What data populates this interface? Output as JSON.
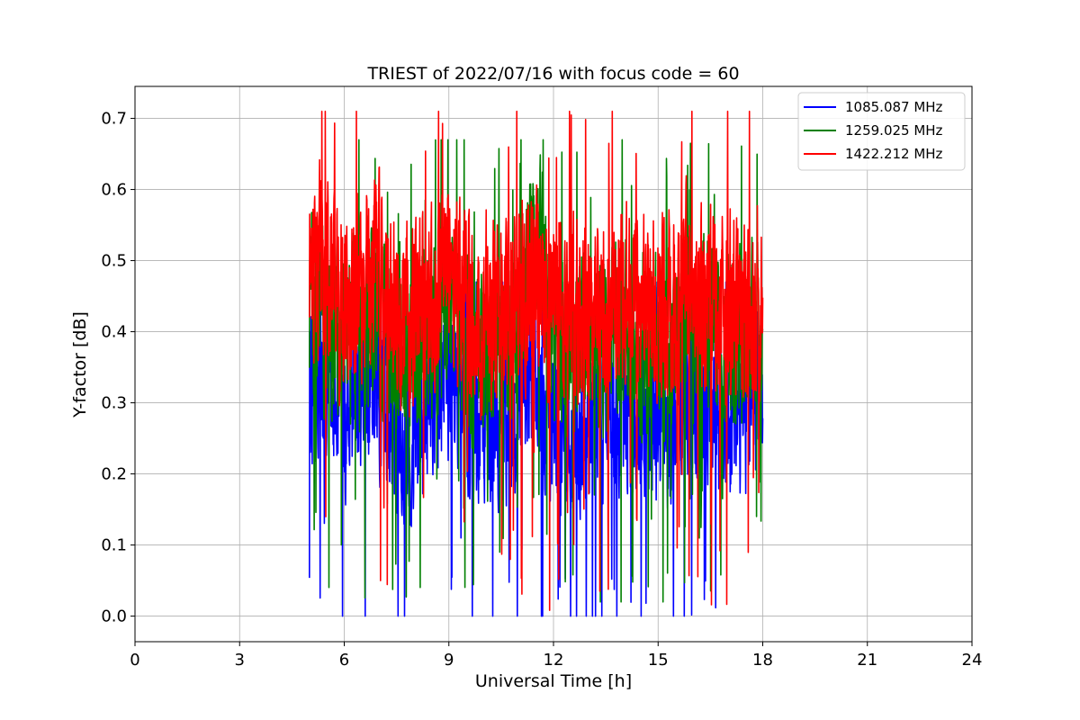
{
  "chart_data": {
    "type": "line",
    "title": "TRIEST of 2022/07/16 with focus code = 60",
    "xlabel": "Universal Time [h]",
    "ylabel": "Y-factor [dB]",
    "xlim": [
      0,
      24
    ],
    "ylim": [
      -0.036,
      0.745
    ],
    "xticks": [
      0,
      3,
      6,
      9,
      12,
      15,
      18,
      21,
      24
    ],
    "yticks": [
      0.0,
      0.1,
      0.2,
      0.3,
      0.4,
      0.5,
      0.6,
      0.7
    ],
    "grid": true,
    "legend_position": "top-right",
    "series": [
      {
        "name": "1085.087 MHz",
        "color": "#0000ff",
        "x": [
          5.0,
          5.5,
          6.0,
          6.5,
          7.0,
          7.5,
          8.0,
          8.5,
          9.0,
          9.5,
          10.0,
          10.5,
          11.0,
          11.5,
          12.0,
          12.5,
          13.0,
          13.5,
          14.0,
          14.5,
          15.0,
          15.5,
          16.0,
          16.5,
          17.0,
          17.5,
          18.0
        ],
        "values": [
          0.35,
          0.34,
          0.3,
          0.31,
          0.33,
          0.28,
          0.26,
          0.31,
          0.34,
          0.29,
          0.26,
          0.27,
          0.29,
          0.36,
          0.27,
          0.26,
          0.27,
          0.28,
          0.29,
          0.27,
          0.27,
          0.28,
          0.3,
          0.28,
          0.27,
          0.28,
          0.33
        ],
        "mean_level": 0.3,
        "spread": 0.16,
        "min": 0.0,
        "max": 0.47
      },
      {
        "name": "1259.025 MHz",
        "color": "#008000",
        "x": [
          5.0,
          5.5,
          6.0,
          6.5,
          7.0,
          7.5,
          8.0,
          8.5,
          9.0,
          9.5,
          10.0,
          10.5,
          11.0,
          11.5,
          12.0,
          12.5,
          13.0,
          13.5,
          14.0,
          14.5,
          15.0,
          15.5,
          16.0,
          16.5,
          17.0,
          17.5,
          18.0
        ],
        "values": [
          0.44,
          0.43,
          0.4,
          0.41,
          0.42,
          0.38,
          0.36,
          0.41,
          0.44,
          0.39,
          0.37,
          0.38,
          0.39,
          0.55,
          0.38,
          0.37,
          0.39,
          0.4,
          0.41,
          0.38,
          0.38,
          0.39,
          0.41,
          0.39,
          0.38,
          0.39,
          0.42
        ],
        "mean_level": 0.4,
        "spread": 0.17,
        "min": 0.02,
        "max": 0.67
      },
      {
        "name": "1422.212 MHz",
        "color": "#ff0000",
        "x": [
          5.0,
          5.5,
          6.0,
          6.5,
          7.0,
          7.5,
          8.0,
          8.5,
          9.0,
          9.5,
          10.0,
          10.5,
          11.0,
          11.5,
          12.0,
          12.5,
          13.0,
          13.5,
          14.0,
          14.5,
          15.0,
          15.5,
          16.0,
          16.5,
          17.0,
          17.5,
          18.0
        ],
        "values": [
          0.5,
          0.48,
          0.45,
          0.46,
          0.47,
          0.43,
          0.41,
          0.46,
          0.49,
          0.44,
          0.42,
          0.43,
          0.44,
          0.47,
          0.43,
          0.42,
          0.44,
          0.45,
          0.46,
          0.43,
          0.43,
          0.44,
          0.46,
          0.44,
          0.43,
          0.44,
          0.47
        ],
        "mean_level": 0.45,
        "spread": 0.18,
        "min": 0.0,
        "max": 0.71
      }
    ]
  }
}
